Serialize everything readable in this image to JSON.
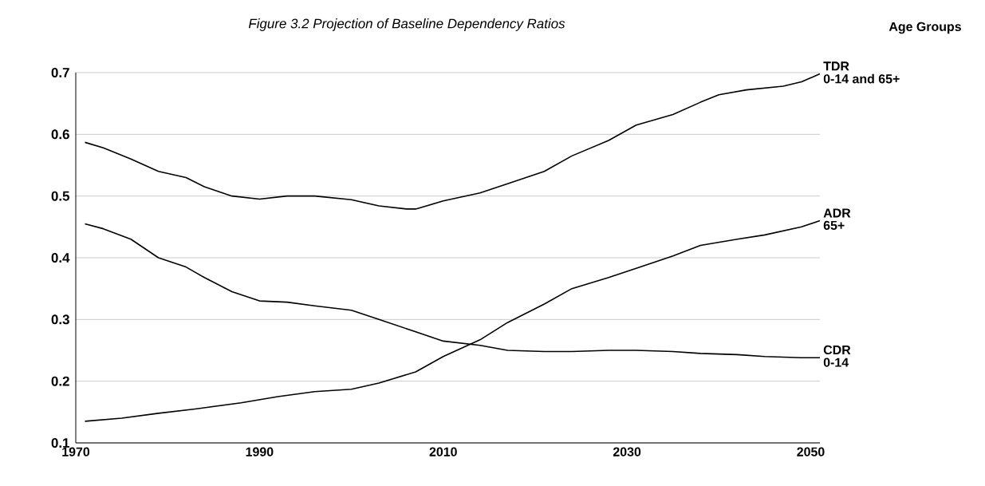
{
  "chart_data": {
    "type": "line",
    "title": "Figure 3.2 Projection of Baseline Dependency Ratios",
    "legend_title": "Age Groups",
    "xlim": [
      1970,
      2051
    ],
    "xticks": [
      1970,
      1990,
      2010,
      2030,
      2050
    ],
    "ylim": [
      0.1,
      0.7
    ],
    "yticks": [
      0.1,
      0.2,
      0.3,
      0.4,
      0.5,
      0.6,
      0.7
    ],
    "grid": "y",
    "legend": false,
    "marker": "none",
    "line_style": "solid",
    "series": [
      {
        "name": "TDR",
        "color": "#000000",
        "x": [
          1971,
          1973,
          1976,
          1979,
          1982,
          1984,
          1987,
          1990,
          1993,
          1996,
          2000,
          2003,
          2006,
          2007,
          2010,
          2014,
          2017,
          2021,
          2024,
          2028,
          2031,
          2035,
          2038,
          2040,
          2043,
          2047,
          2049,
          2051
        ],
        "values": [
          0.587,
          0.578,
          0.56,
          0.54,
          0.53,
          0.515,
          0.5,
          0.495,
          0.5,
          0.5,
          0.494,
          0.484,
          0.479,
          0.479,
          0.492,
          0.505,
          0.52,
          0.54,
          0.565,
          0.59,
          0.615,
          0.632,
          0.652,
          0.664,
          0.672,
          0.678,
          0.685,
          0.698
        ]
      },
      {
        "name": "ADR",
        "color": "#000000",
        "x": [
          1971,
          1975,
          1979,
          1983,
          1988,
          1992,
          1996,
          2000,
          2003,
          2007,
          2010,
          2014,
          2017,
          2021,
          2024,
          2028,
          2031,
          2035,
          2038,
          2042,
          2045,
          2049,
          2051
        ],
        "values": [
          0.135,
          0.14,
          0.148,
          0.155,
          0.165,
          0.175,
          0.183,
          0.187,
          0.197,
          0.215,
          0.24,
          0.267,
          0.295,
          0.325,
          0.35,
          0.368,
          0.383,
          0.403,
          0.42,
          0.43,
          0.437,
          0.45,
          0.46
        ]
      },
      {
        "name": "CDR",
        "color": "#000000",
        "x": [
          1971,
          1973,
          1976,
          1979,
          1982,
          1984,
          1987,
          1990,
          1993,
          1996,
          2000,
          2003,
          2007,
          2010,
          2014,
          2017,
          2021,
          2024,
          2028,
          2031,
          2035,
          2038,
          2042,
          2045,
          2049,
          2051
        ],
        "values": [
          0.455,
          0.447,
          0.43,
          0.4,
          0.385,
          0.368,
          0.345,
          0.33,
          0.328,
          0.322,
          0.315,
          0.3,
          0.28,
          0.265,
          0.258,
          0.25,
          0.248,
          0.248,
          0.25,
          0.25,
          0.248,
          0.245,
          0.243,
          0.24,
          0.238,
          0.238
        ]
      }
    ],
    "annotations": [
      "0-14 and 65+",
      "65+",
      "0-14"
    ]
  }
}
